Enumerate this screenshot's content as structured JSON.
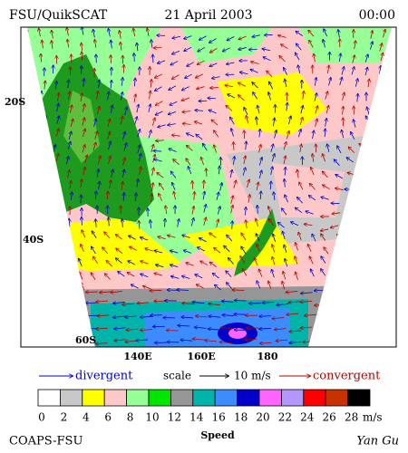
{
  "header": {
    "title": "FSU/QuikSCAT",
    "date": "21 April 2003",
    "time": "00:00"
  },
  "map": {
    "lat_labels": [
      "20S",
      "40S",
      "60S"
    ],
    "lon_labels": [
      "140E",
      "160E",
      "180"
    ]
  },
  "legend": {
    "divergent": "divergent",
    "scale": "scale",
    "scale_value": "10 m/s",
    "convergent": "convergent"
  },
  "colorbar": {
    "colors": [
      "#ffffff",
      "#c8c8c8",
      "#ffff00",
      "#ffc8c8",
      "#96ff96",
      "#00e600",
      "#969696",
      "#00b4aa",
      "#3c8cff",
      "#0000c8",
      "#ff64ff",
      "#b496ff",
      "#ff0000",
      "#c83200",
      "#000000"
    ],
    "labels": [
      0,
      2,
      4,
      6,
      8,
      10,
      12,
      14,
      16,
      18,
      20,
      22,
      24,
      26,
      28
    ],
    "unit": "m/s"
  },
  "footer": {
    "left": "COAPS-FSU",
    "center": "Speed",
    "right": "Yan Gu"
  }
}
